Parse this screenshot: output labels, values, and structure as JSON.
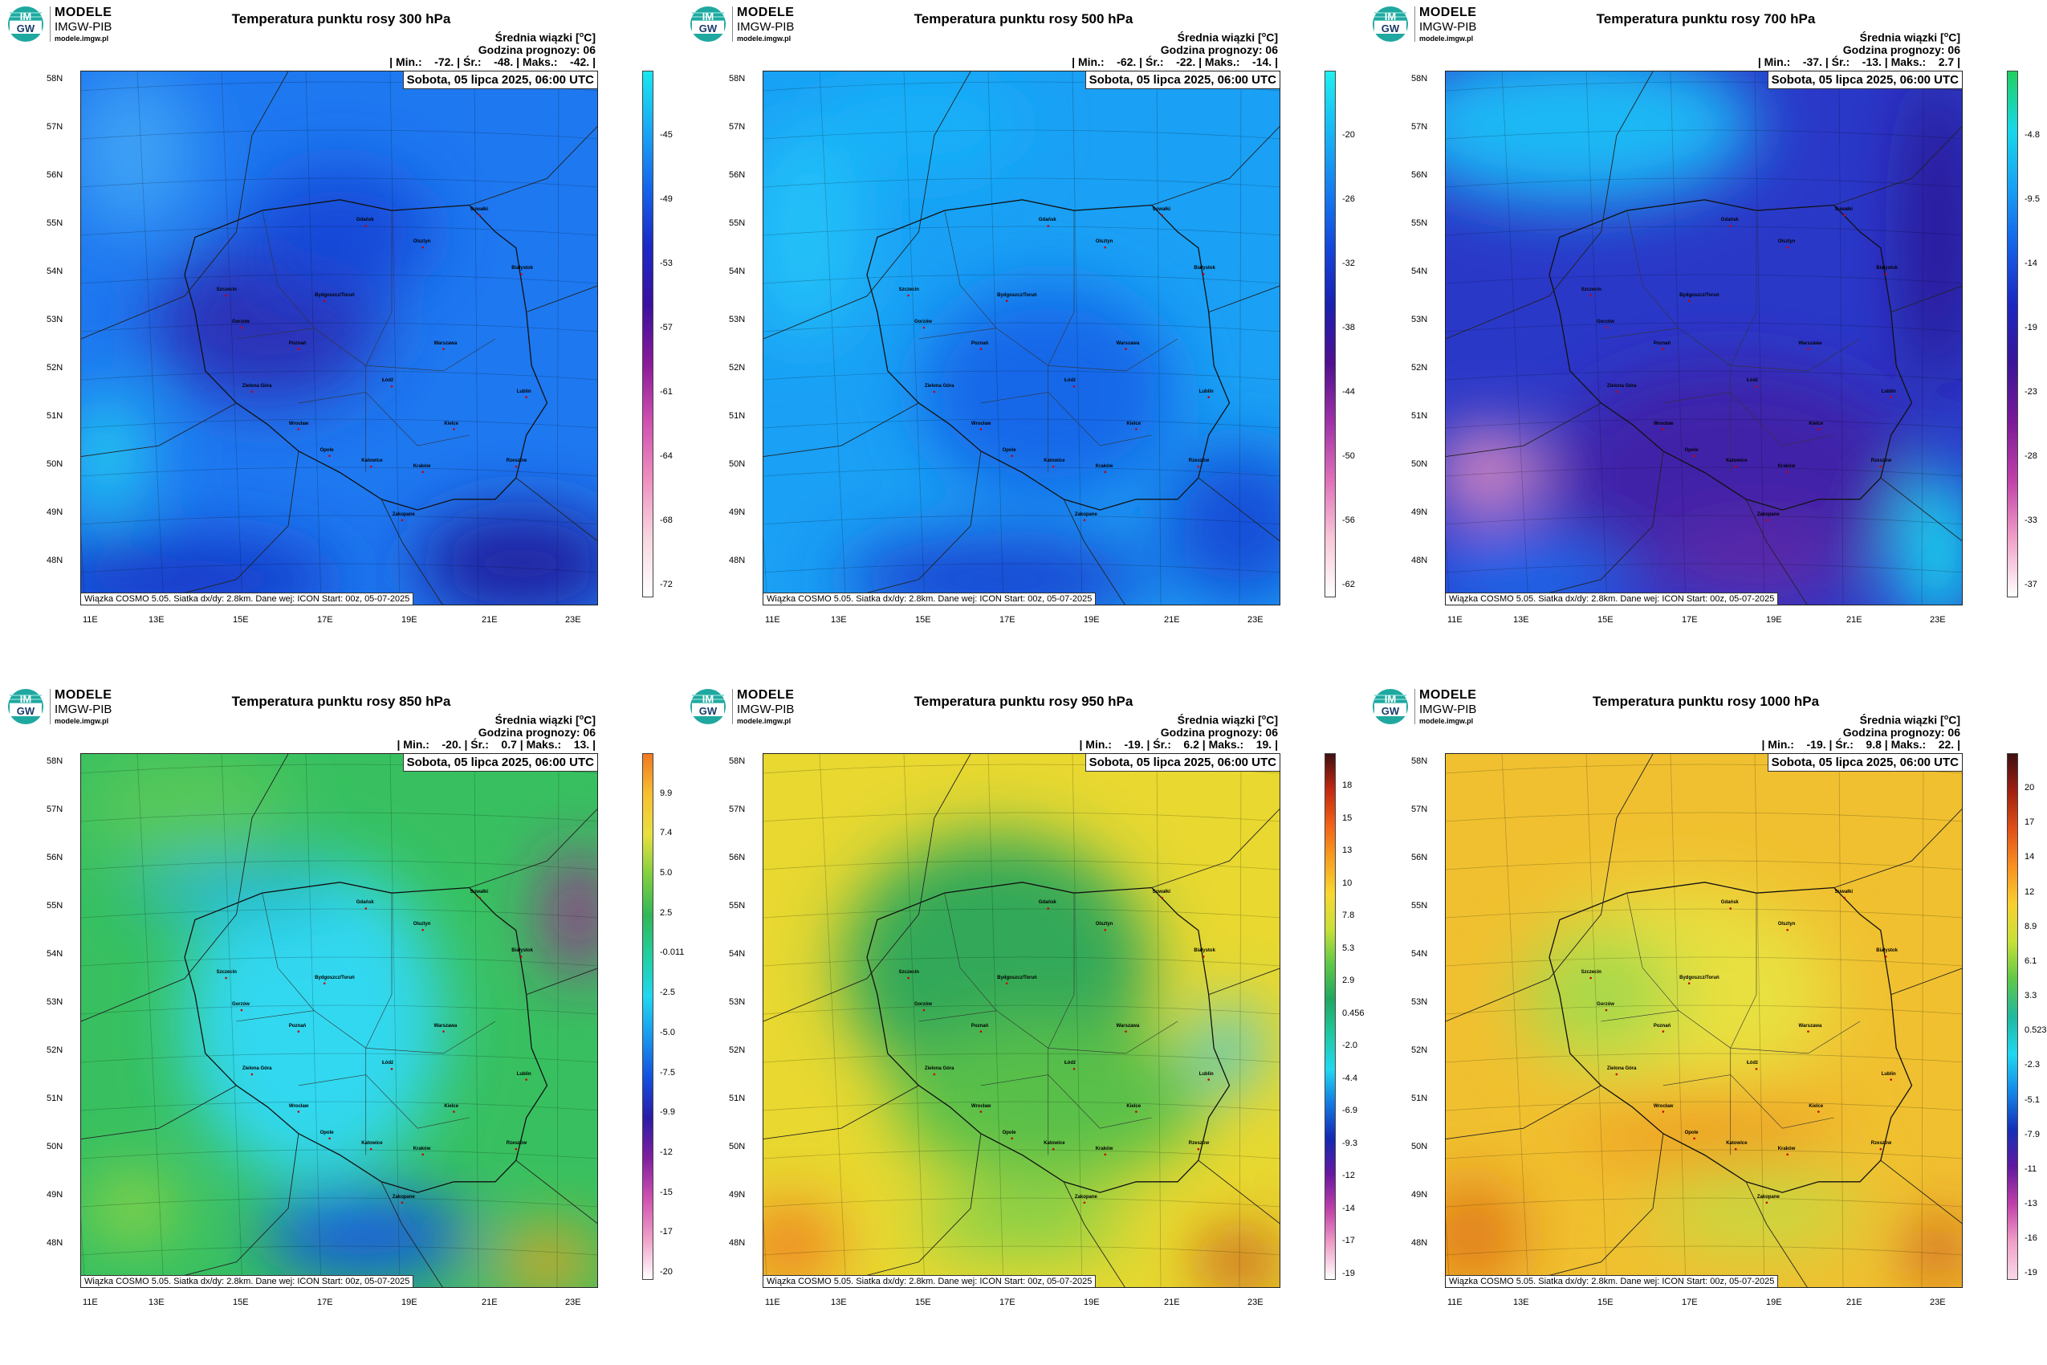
{
  "brand": {
    "line1": "MODELE",
    "line2": "IMGW-PIB",
    "line3": "modele.imgw.pl",
    "logo_text_top": "IM",
    "logo_text_bottom": "GW"
  },
  "common": {
    "info_line1_prefix": "Średnia wiązki [",
    "info_line1_unit": "o",
    "info_line1_suffix": "C]",
    "info_line2": "Godzina prognozy: 06",
    "date": "Sobota, 05 lipca 2025, 06:00 UTC",
    "footer": "Wiązka COSMO 5.05. Siatka dx/dy: 2.8km. Dane wej: ICON Start: 00z, 05-07-2025",
    "lat_labels": [
      "58N",
      "57N",
      "56N",
      "55N",
      "54N",
      "53N",
      "52N",
      "51N",
      "50N",
      "49N",
      "48N"
    ],
    "lon_labels": [
      "11E",
      "13E",
      "15E",
      "17E",
      "19E",
      "21E",
      "23E"
    ]
  },
  "cities": [
    "Gdańsk",
    "Olsztyn",
    "Suwałki",
    "Białystok",
    "Szczecin",
    "Bydgoszcz/Toruń",
    "Gorzów",
    "Poznań",
    "Warszawa",
    "Zielona Góra",
    "Łódź",
    "Lublin",
    "Wrocław",
    "Kielce",
    "Opole",
    "Katowice",
    "Kraków",
    "Rzeszów",
    "Zakopane"
  ],
  "panels": [
    {
      "id": "p300",
      "title": "Temperatura punktu rosy 300 hPa",
      "stats": "| Min.:    -72. | Śr.:    -48. | Maks.:    -42. |",
      "colorbar": {
        "ticks": [
          "-45",
          "-49",
          "-53",
          "-57",
          "-61",
          "-64",
          "-68",
          "-72"
        ],
        "colors": [
          "#18e8f0",
          "#1aa8f5",
          "#1565ec",
          "#1a28c8",
          "#3a10a0",
          "#8a1a9a",
          "#d050b0",
          "#f090c0",
          "#f8d8e0",
          "#ffffff"
        ]
      },
      "map_colors": {
        "base": "#1e78f0",
        "blobs": [
          [
            "#2a30b8",
            0.36,
            0.47,
            0.22,
            0.15
          ],
          [
            "#1848d8",
            0.5,
            0.3,
            0.18,
            0.12
          ],
          [
            "#20c8f0",
            0.05,
            0.72,
            0.08,
            0.12
          ],
          [
            "#1838c8",
            0.2,
            0.95,
            0.3,
            0.08
          ],
          [
            "#2020a0",
            0.85,
            0.92,
            0.2,
            0.1
          ],
          [
            "#3da0f5",
            0.1,
            0.15,
            0.12,
            0.15
          ]
        ]
      }
    },
    {
      "id": "p500",
      "title": "Temperatura punktu rosy 500 hPa",
      "stats": "| Min.:    -62. | Śr.:    -22. | Maks.:    -14. |",
      "colorbar": {
        "ticks": [
          "-20",
          "-26",
          "-32",
          "-38",
          "-44",
          "-50",
          "-56",
          "-62"
        ],
        "colors": [
          "#20f0f0",
          "#18b8f5",
          "#1680f0",
          "#1448dc",
          "#1a20b0",
          "#501090",
          "#a030a8",
          "#e070b8",
          "#f8c8d8",
          "#ffffff"
        ]
      },
      "map_colors": {
        "base": "#1aa0f5",
        "blobs": [
          [
            "#1668e8",
            0.55,
            0.6,
            0.25,
            0.2
          ],
          [
            "#20c0f8",
            0.08,
            0.3,
            0.12,
            0.2
          ],
          [
            "#1850d8",
            0.92,
            0.85,
            0.15,
            0.15
          ],
          [
            "#1a40d0",
            0.45,
            0.95,
            0.3,
            0.08
          ],
          [
            "#18b0f8",
            0.3,
            0.1,
            0.2,
            0.1
          ]
        ]
      }
    },
    {
      "id": "p700",
      "title": "Temperatura punktu rosy 700 hPa",
      "stats": "| Min.:    -37. | Śr.:    -13. | Maks.:    2.7 |",
      "colorbar": {
        "ticks": [
          "-4.8",
          "-9.5",
          "-14",
          "-19",
          "-23",
          "-28",
          "-33",
          "-37"
        ],
        "colors": [
          "#20d060",
          "#18d8e8",
          "#18a0f5",
          "#1660e8",
          "#1a28c0",
          "#3a1498",
          "#7a1a98",
          "#c040a8",
          "#f0a0c8",
          "#ffffff"
        ]
      },
      "map_colors": {
        "base": "#2a38c8",
        "blobs": [
          [
            "#1fb8f5",
            0.25,
            0.1,
            0.35,
            0.15
          ],
          [
            "#4020a8",
            0.55,
            0.75,
            0.35,
            0.2
          ],
          [
            "#e890c0",
            0.08,
            0.75,
            0.1,
            0.08
          ],
          [
            "#18d8f0",
            0.95,
            0.9,
            0.08,
            0.15
          ],
          [
            "#2a1890",
            0.95,
            0.3,
            0.06,
            0.3
          ],
          [
            "#1a68e8",
            0.15,
            0.95,
            0.2,
            0.08
          ],
          [
            "#5c2aa8",
            0.6,
            0.92,
            0.2,
            0.08
          ]
        ]
      }
    },
    {
      "id": "p850",
      "title": "Temperatura punktu rosy 850 hPa",
      "stats": "| Min.:    -20. | Śr.:    0.7 | Maks.:    13. |",
      "colorbar": {
        "ticks": [
          "9.9",
          "7.4",
          "5.0",
          "2.5",
          "-0.011",
          "-2.5",
          "-5.0",
          "-7.5",
          "-9.9",
          "-12",
          "-15",
          "-17",
          "-20"
        ],
        "colors": [
          "#f07820",
          "#f8c030",
          "#e8e040",
          "#80d040",
          "#30b858",
          "#20d0a0",
          "#20d8f0",
          "#1898f0",
          "#1450e0",
          "#2a1ca8",
          "#8020a0",
          "#d050b0",
          "#f0a0c8",
          "#ffffff"
        ]
      },
      "map_colors": {
        "base": "#38c060",
        "blobs": [
          [
            "#30d8f0",
            0.45,
            0.5,
            0.25,
            0.3
          ],
          [
            "#1858e0",
            0.55,
            0.9,
            0.2,
            0.08
          ],
          [
            "#a02890",
            0.96,
            0.3,
            0.06,
            0.12
          ],
          [
            "#f0a020",
            0.9,
            0.95,
            0.1,
            0.06
          ],
          [
            "#a0d840",
            0.1,
            0.85,
            0.08,
            0.06
          ],
          [
            "#58c858",
            0.2,
            0.1,
            0.2,
            0.1
          ],
          [
            "#28b8c8",
            0.3,
            0.25,
            0.2,
            0.06
          ]
        ]
      }
    },
    {
      "id": "p950",
      "title": "Temperatura punktu rosy 950 hPa",
      "stats": "| Min.:    -19. | Śr.:    6.2 | Maks.:    19. |",
      "colorbar": {
        "ticks": [
          "18",
          "15",
          "13",
          "10",
          "7.8",
          "5.3",
          "2.9",
          "0.456",
          "-2.0",
          "-4.4",
          "-6.9",
          "-9.3",
          "-12",
          "-14",
          "-17",
          "-19"
        ],
        "colors": [
          "#401010",
          "#c02810",
          "#f06018",
          "#f8a020",
          "#f8d830",
          "#c8e038",
          "#60c848",
          "#20a860",
          "#20c8a0",
          "#20d8f0",
          "#1478e0",
          "#1428b0",
          "#6818a0",
          "#c040a8",
          "#f0a0c8",
          "#ffffff"
        ]
      },
      "map_colors": {
        "base": "#e8d830",
        "blobs": [
          [
            "#30a858",
            0.45,
            0.4,
            0.3,
            0.25
          ],
          [
            "#58c048",
            0.55,
            0.65,
            0.3,
            0.15
          ],
          [
            "#f08020",
            0.05,
            0.92,
            0.1,
            0.08
          ],
          [
            "#c03818",
            0.92,
            0.95,
            0.08,
            0.05
          ],
          [
            "#40c8e0",
            0.9,
            0.55,
            0.06,
            0.08
          ],
          [
            "#80d048",
            0.5,
            0.88,
            0.2,
            0.06
          ]
        ]
      }
    },
    {
      "id": "p1000",
      "title": "Temperatura punktu rosy 1000 hPa",
      "stats": "| Min.:    -19. | Śr.:    9.8 | Maks.:    22. |",
      "colorbar": {
        "ticks": [
          "20",
          "17",
          "14",
          "12",
          "8.9",
          "6.1",
          "3.3",
          "0.523",
          "-2.3",
          "-5.1",
          "-7.9",
          "-11",
          "-13",
          "-16",
          "-19"
        ],
        "colors": [
          "#401010",
          "#a02010",
          "#e05018",
          "#f89020",
          "#f8d030",
          "#c8e038",
          "#60c848",
          "#20b8a0",
          "#20d8f0",
          "#1488e8",
          "#1430b8",
          "#6018a0",
          "#c040a8",
          "#f0a0c8",
          "#f8d8e8"
        ]
      },
      "map_colors": {
        "base": "#f0c030",
        "blobs": [
          [
            "#e8e040",
            0.45,
            0.45,
            0.3,
            0.2
          ],
          [
            "#a8d848",
            0.3,
            0.45,
            0.15,
            0.12
          ],
          [
            "#e07818",
            0.05,
            0.9,
            0.1,
            0.1
          ],
          [
            "#c03818",
            0.95,
            0.93,
            0.06,
            0.05
          ],
          [
            "#c8d840",
            0.6,
            0.85,
            0.2,
            0.08
          ],
          [
            "#f0a020",
            0.5,
            0.7,
            0.25,
            0.08
          ]
        ]
      }
    }
  ]
}
